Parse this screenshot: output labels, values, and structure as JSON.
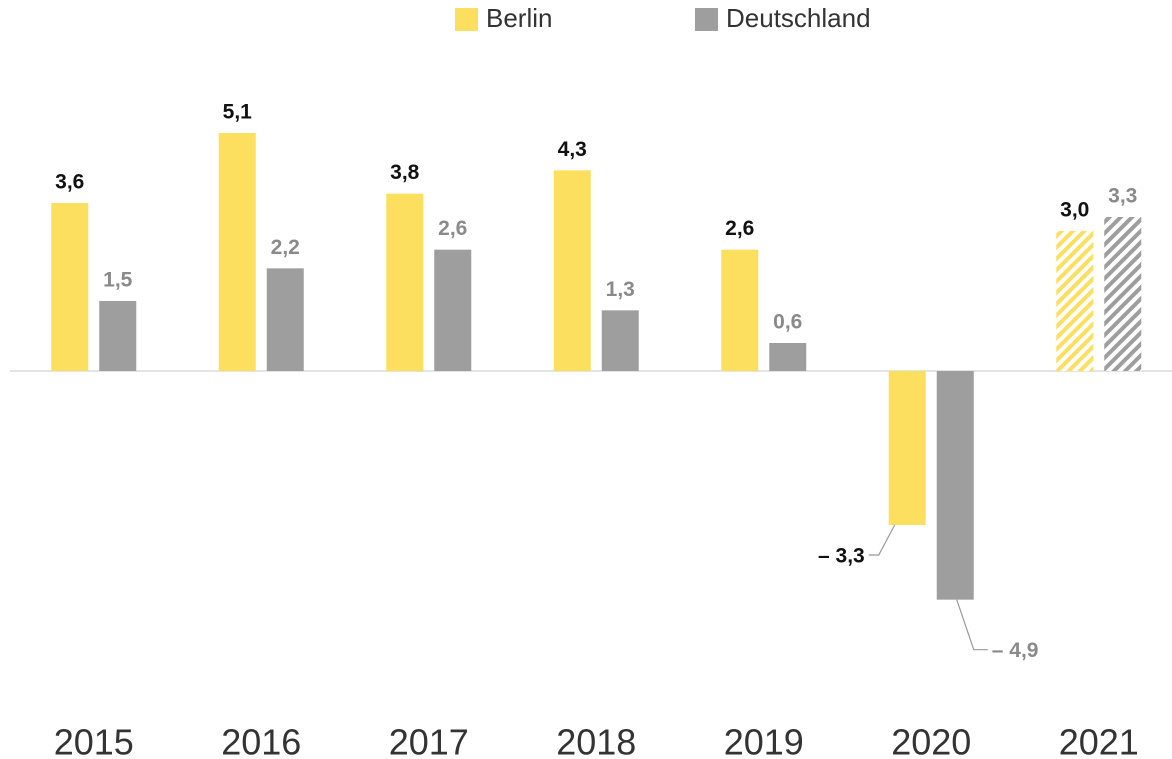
{
  "chart_data": {
    "type": "bar",
    "categories": [
      "2015",
      "2016",
      "2017",
      "2018",
      "2019",
      "2020",
      "2021"
    ],
    "series": [
      {
        "name": "Berlin",
        "color": "#fddf5f",
        "label_color": "#111111",
        "values": [
          3.6,
          5.1,
          3.8,
          4.3,
          2.6,
          -3.3,
          3.0
        ],
        "value_labels": [
          "3,6",
          "5,1",
          "3,8",
          "4,3",
          "2,6",
          "– 3,3",
          "3,0"
        ],
        "hatched": [
          false,
          false,
          false,
          false,
          false,
          false,
          true
        ]
      },
      {
        "name": "Deutschland",
        "color": "#9e9e9e",
        "label_color": "#8a8a8a",
        "values": [
          1.5,
          2.2,
          2.6,
          1.3,
          0.6,
          -4.9,
          3.3
        ],
        "value_labels": [
          "1,5",
          "2,2",
          "2,6",
          "1,3",
          "0,6",
          "– 4,9",
          "3,3"
        ],
        "hatched": [
          false,
          false,
          false,
          false,
          false,
          false,
          true
        ]
      }
    ],
    "ylim": [
      -6,
      6
    ]
  }
}
